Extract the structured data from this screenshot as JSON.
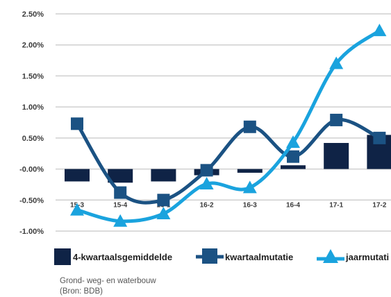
{
  "chart_data": {
    "type": "bar+line",
    "categories": [
      "15-3",
      "15-4",
      "16-1",
      "16-2",
      "16-3",
      "16-4",
      "17-1",
      "17-2"
    ],
    "y_ticks": [
      "2.50%",
      "2.00%",
      "1.50%",
      "1.00%",
      "0.50%",
      "-0.00%",
      "-0.50%",
      "-1.00%"
    ],
    "ylim": [
      -1.0,
      2.5
    ],
    "grid": true,
    "legend_position": "bottom",
    "series": [
      {
        "name": "4-kwartaalsgemiddelde",
        "type": "bar",
        "color": "#0f2346",
        "values": [
          -0.2,
          -0.22,
          -0.2,
          -0.1,
          -0.06,
          0.06,
          0.42,
          0.55
        ]
      },
      {
        "name": "kwartaalmutatie",
        "type": "line",
        "marker": "square",
        "color": "#1b5283",
        "values": [
          0.73,
          -0.38,
          -0.5,
          -0.02,
          0.68,
          0.2,
          0.79,
          0.5
        ]
      },
      {
        "name": "jaarmutatie",
        "type": "line",
        "marker": "triangle",
        "color": "#1aa3de",
        "values": [
          -0.66,
          -0.84,
          -0.72,
          -0.24,
          -0.3,
          0.43,
          1.7,
          2.23
        ]
      }
    ]
  },
  "legend": {
    "items": [
      {
        "label": "4-kwartaalsgemiddelde"
      },
      {
        "label": "kwartaalmutatie"
      },
      {
        "label": "jaarmutati"
      }
    ]
  },
  "caption": {
    "line1": "Grond- weg- en waterbouw",
    "line2": "(Bron: BDB)"
  }
}
